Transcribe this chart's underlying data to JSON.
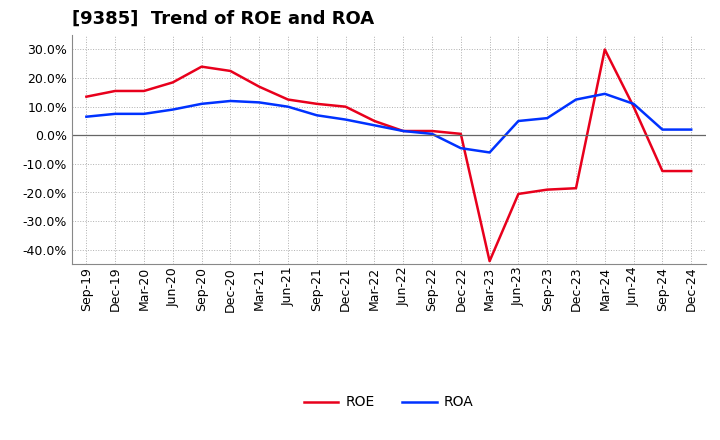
{
  "title": "[9385]  Trend of ROE and ROA",
  "labels": [
    "Sep-19",
    "Dec-19",
    "Mar-20",
    "Jun-20",
    "Sep-20",
    "Dec-20",
    "Mar-21",
    "Jun-21",
    "Sep-21",
    "Dec-21",
    "Mar-22",
    "Jun-22",
    "Sep-22",
    "Dec-22",
    "Mar-23",
    "Jun-23",
    "Sep-23",
    "Dec-23",
    "Mar-24",
    "Jun-24",
    "Sep-24",
    "Dec-24"
  ],
  "ROE": [
    13.5,
    15.5,
    15.5,
    18.5,
    24.0,
    22.5,
    17.0,
    12.5,
    11.0,
    10.0,
    5.0,
    1.5,
    1.5,
    0.5,
    -44.0,
    -20.5,
    -19.0,
    -18.5,
    30.0,
    10.0,
    -12.5,
    -12.5
  ],
  "ROA": [
    6.5,
    7.5,
    7.5,
    9.0,
    11.0,
    12.0,
    11.5,
    10.0,
    7.0,
    5.5,
    3.5,
    1.5,
    0.5,
    -4.5,
    -6.0,
    5.0,
    6.0,
    12.5,
    14.5,
    11.0,
    2.0,
    2.0
  ],
  "roe_color": "#e8001c",
  "roa_color": "#0032ff",
  "background_color": "#ffffff",
  "grid_color": "#b0b0b0",
  "ylim": [
    -45,
    35
  ],
  "yticks": [
    -40,
    -30,
    -20,
    -10,
    0,
    10,
    20,
    30
  ],
  "title_fontsize": 13,
  "legend_fontsize": 10,
  "axis_tick_fontsize": 9
}
